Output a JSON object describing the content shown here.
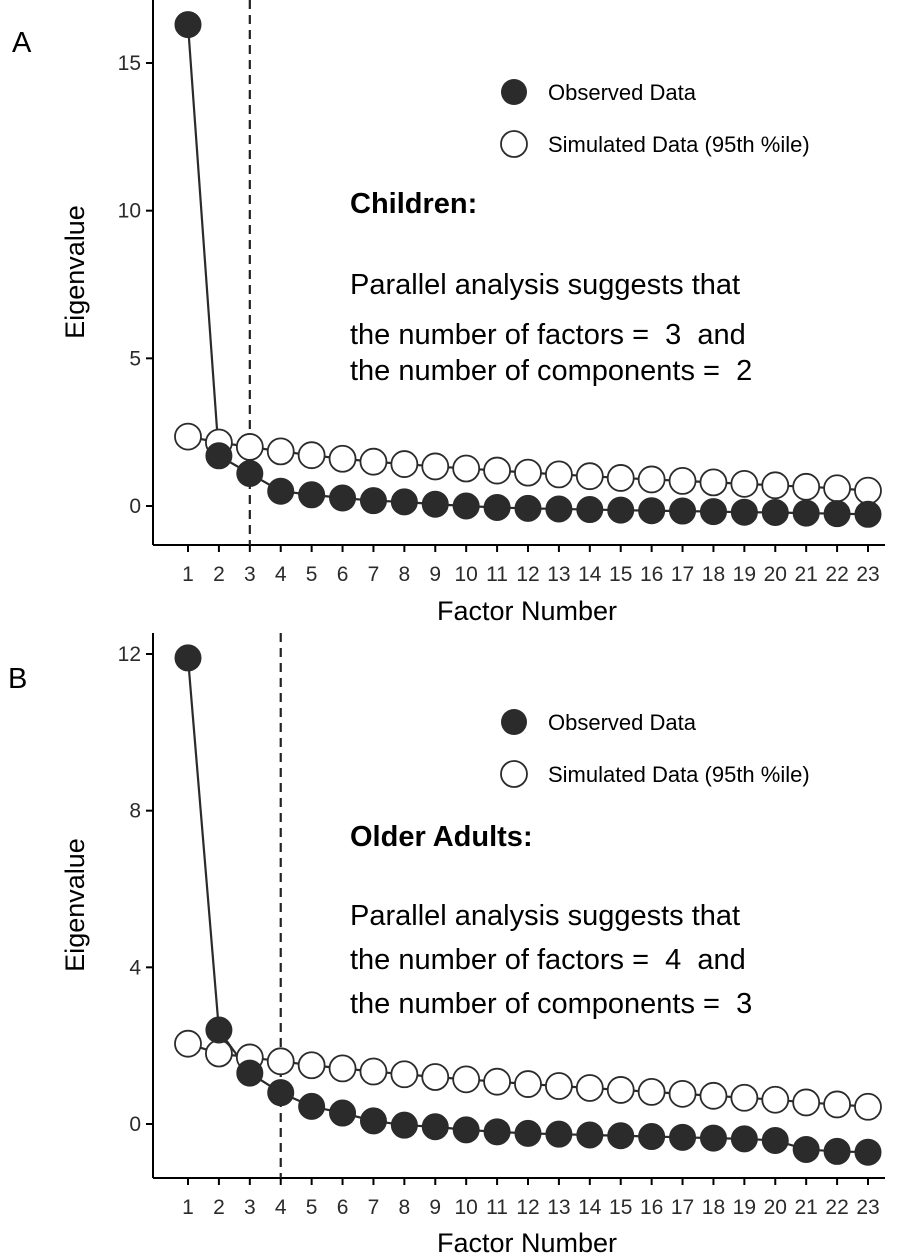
{
  "chart_data": [
    {
      "type": "line",
      "panel_label": "A",
      "xlabel": "Factor Number",
      "ylabel": "Eigenvalue",
      "x": [
        1,
        2,
        3,
        4,
        5,
        6,
        7,
        8,
        9,
        10,
        11,
        12,
        13,
        14,
        15,
        16,
        17,
        18,
        19,
        20,
        21,
        22,
        23
      ],
      "x_tick_labels": [
        "1",
        "2",
        "3",
        "4",
        "5",
        "6",
        "7",
        "8",
        "9",
        "10",
        "11",
        "12",
        "13",
        "14",
        "15",
        "16",
        "17",
        "18",
        "19",
        "20",
        "21",
        "22",
        "23"
      ],
      "ylim": [
        -1.25,
        17
      ],
      "y_ticks": [
        0,
        5,
        10,
        15
      ],
      "y_tick_labels": [
        "0",
        "5",
        "10",
        "15"
      ],
      "vline_x": 3,
      "series": [
        {
          "name": "Observed Data",
          "marker": "filled-circle",
          "values": [
            16.3,
            1.7,
            1.1,
            0.5,
            0.38,
            0.27,
            0.18,
            0.14,
            0.06,
            0.0,
            -0.05,
            -0.08,
            -0.1,
            -0.12,
            -0.14,
            -0.16,
            -0.17,
            -0.19,
            -0.21,
            -0.22,
            -0.24,
            -0.26,
            -0.28
          ]
        },
        {
          "name": "Simulated Data (95th %ile)",
          "marker": "open-circle",
          "values": [
            2.35,
            2.15,
            2.0,
            1.85,
            1.72,
            1.6,
            1.5,
            1.42,
            1.34,
            1.27,
            1.2,
            1.13,
            1.07,
            1.01,
            0.95,
            0.9,
            0.85,
            0.8,
            0.75,
            0.7,
            0.65,
            0.6,
            0.52
          ]
        }
      ],
      "legend_position": "top-right",
      "annotation": {
        "title": "Children:",
        "lines": [
          "Parallel analysis suggests that",
          "the number of factors =  3  and",
          "the number of components =  2"
        ]
      }
    },
    {
      "type": "line",
      "panel_label": "B",
      "xlabel": "Factor Number",
      "ylabel": "Eigenvalue",
      "x": [
        1,
        2,
        3,
        4,
        5,
        6,
        7,
        8,
        9,
        10,
        11,
        12,
        13,
        14,
        15,
        16,
        17,
        18,
        19,
        20,
        21,
        22,
        23
      ],
      "x_tick_labels": [
        "1",
        "2",
        "3",
        "4",
        "5",
        "6",
        "7",
        "8",
        "9",
        "10",
        "11",
        "12",
        "13",
        "14",
        "15",
        "16",
        "17",
        "18",
        "19",
        "20",
        "21",
        "22",
        "23"
      ],
      "ylim": [
        -1.25,
        12.5
      ],
      "y_ticks": [
        0,
        4,
        8,
        12
      ],
      "y_tick_labels": [
        "0",
        "4",
        "8",
        "12"
      ],
      "vline_x": 4,
      "series": [
        {
          "name": "Observed Data",
          "marker": "filled-circle",
          "values": [
            11.9,
            2.4,
            1.3,
            0.8,
            0.45,
            0.28,
            0.08,
            -0.03,
            -0.07,
            -0.15,
            -0.2,
            -0.24,
            -0.26,
            -0.28,
            -0.3,
            -0.32,
            -0.34,
            -0.36,
            -0.38,
            -0.42,
            -0.65,
            -0.7,
            -0.72
          ]
        },
        {
          "name": "Simulated Data (95th %ile)",
          "marker": "open-circle",
          "values": [
            2.05,
            1.8,
            1.7,
            1.6,
            1.5,
            1.42,
            1.34,
            1.27,
            1.2,
            1.14,
            1.08,
            1.02,
            0.97,
            0.92,
            0.87,
            0.82,
            0.77,
            0.72,
            0.67,
            0.62,
            0.55,
            0.5,
            0.44
          ]
        }
      ],
      "legend_position": "top-right",
      "annotation": {
        "title": "Older Adults:",
        "lines": [
          "Parallel analysis suggests that",
          "the number of factors =  4  and",
          "the number of components =  3"
        ]
      }
    }
  ],
  "colors": {
    "observed": "#2b2b2b",
    "simulated_fill": "#ffffff",
    "line": "#2b2b2b",
    "axis": "#000000"
  }
}
